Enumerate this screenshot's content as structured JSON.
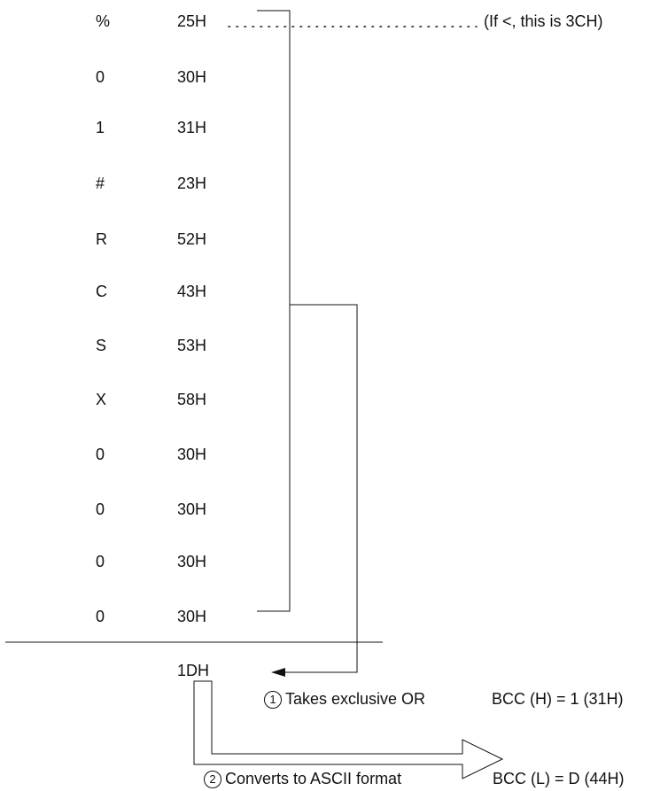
{
  "rows": [
    {
      "char": "%",
      "hex": "25H"
    },
    {
      "char": "0",
      "hex": "30H"
    },
    {
      "char": "1",
      "hex": "31H"
    },
    {
      "char": "#",
      "hex": "23H"
    },
    {
      "char": "R",
      "hex": "52H"
    },
    {
      "char": "C",
      "hex": "43H"
    },
    {
      "char": "S",
      "hex": "53H"
    },
    {
      "char": "X",
      "hex": "58H"
    },
    {
      "char": "0",
      "hex": "30H"
    },
    {
      "char": "0",
      "hex": "30H"
    },
    {
      "char": "0",
      "hex": "30H"
    },
    {
      "char": "0",
      "hex": "30H"
    }
  ],
  "note": "(If <, this is 3CH)",
  "result": "1DH",
  "step1": {
    "num": "1",
    "text": "Takes exclusive OR",
    "bcc": "BCC (H) = 1 (31H)"
  },
  "step2": {
    "num": "2",
    "text": "Converts to ASCII format",
    "bcc": "BCC (L) = D (44H)"
  }
}
